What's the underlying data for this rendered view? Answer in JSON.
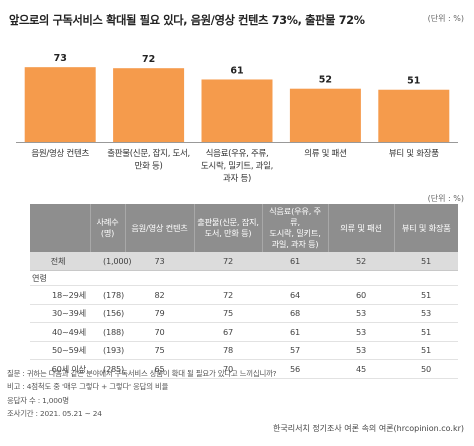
{
  "title": "앞으로의 구독서비스 확대될 필요 있다, 음원/영상 컨텐츠 73%, 출판물 72%",
  "unit_label": "(단위 : %)",
  "chart_data": {
    "type": "bar",
    "title": "앞으로의 구독서비스 확대될 필요 있다, 음원/영상 컨텐츠 73%, 출판물 72%",
    "categories": [
      [
        "음원/영상 컨텐츠"
      ],
      [
        "출판물(신문, 잡지, 도서,",
        "만화 등)"
      ],
      [
        "식음료(우유, 주류,",
        "도시락, 밀키트, 과일,",
        "과자 등)"
      ],
      [
        "의류 및 패션"
      ],
      [
        "뷰티 및 화장품"
      ]
    ],
    "values": [
      73,
      72,
      61,
      52,
      51
    ],
    "ylim": [
      0,
      80
    ],
    "color": "#f59b4c",
    "grid": false,
    "legend": "none"
  },
  "table": {
    "unit_label": "(단위 : %)",
    "headers": [
      "",
      [
        "사례수",
        "(명)"
      ],
      [
        "음원/영상 컨텐츠"
      ],
      [
        "출판물(신문, 잡지,",
        "도서, 만화 등)"
      ],
      [
        "식음료(우유, 주류,",
        "도시락, 밀키트,",
        "과일, 과자 등)"
      ],
      [
        "의류 및 패션"
      ],
      [
        "뷰티 및 화장품"
      ]
    ],
    "total": {
      "label": "전체",
      "n": "(1,000)",
      "values": [
        "73",
        "72",
        "61",
        "52",
        "51"
      ]
    },
    "group_label": "연령",
    "rows": [
      {
        "label": "18~29세",
        "n": "(178)",
        "values": [
          "82",
          "72",
          "64",
          "60",
          "51"
        ]
      },
      {
        "label": "30~39세",
        "n": "(156)",
        "values": [
          "79",
          "75",
          "68",
          "53",
          "53"
        ]
      },
      {
        "label": "40~49세",
        "n": "(188)",
        "values": [
          "70",
          "67",
          "61",
          "53",
          "51"
        ]
      },
      {
        "label": "50~59세",
        "n": "(193)",
        "values": [
          "75",
          "78",
          "57",
          "53",
          "51"
        ]
      },
      {
        "label": "60세 이상",
        "n": "(285)",
        "values": [
          "65",
          "70",
          "56",
          "45",
          "50"
        ]
      }
    ]
  },
  "notes": [
    "질문 : 귀하는 다음과 같은 분야에서 구독서비스 상품이 확대 될 필요가 있다고 느끼십니까?",
    "비고 : 4점척도 중 '매우 그렇다 + 그렇다' 응답의 비율",
    "응답자 수 : 1,000명",
    "조사기간 : 2021. 05.21 ~ 24"
  ],
  "source": "한국리서치 정기조사 여론 속의 여론(hrcopinion.co.kr)"
}
